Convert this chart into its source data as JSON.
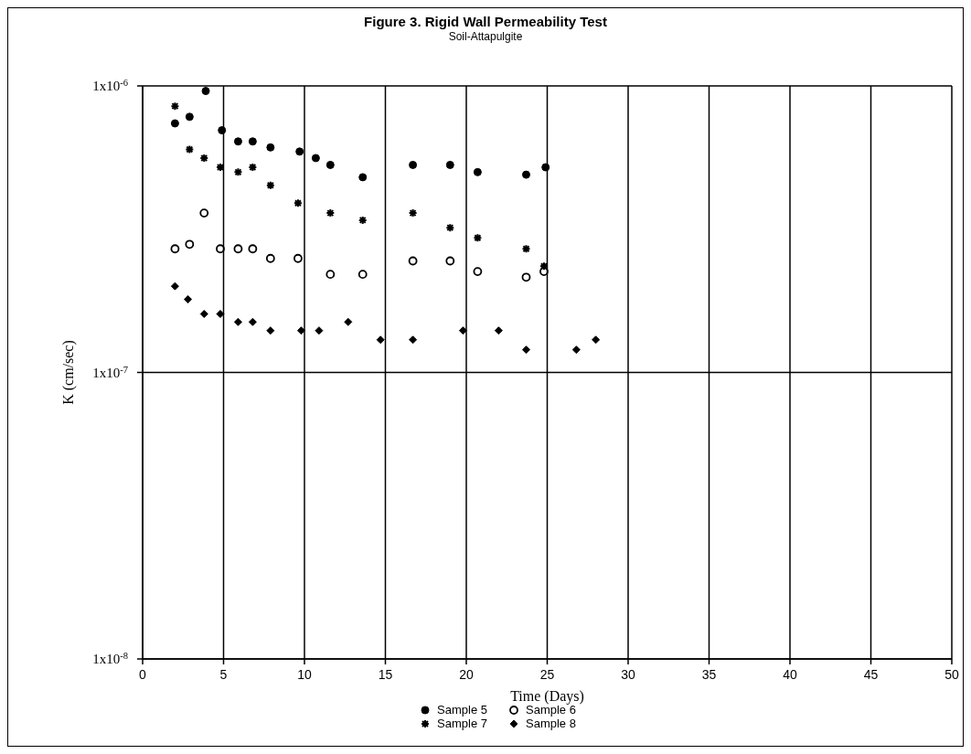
{
  "chart_data": {
    "type": "scatter",
    "title": "Figure 3. Rigid Wall Permeability Test",
    "subtitle": "Soil-Attapulgite",
    "xlabel": "Time (Days)",
    "ylabel": "K (cm/sec)",
    "xlim": [
      0,
      50
    ],
    "xticks": [
      0,
      5,
      10,
      15,
      20,
      25,
      30,
      35,
      40,
      45,
      50
    ],
    "ylim": [
      1e-08,
      1e-06
    ],
    "yticks": [
      {
        "value": 1e-08,
        "label": "1x10$^{-8}$"
      },
      {
        "value": 1e-07,
        "label": "1x10$^{-7}$"
      },
      {
        "value": 1e-06,
        "label": "1x10$^{-6}$"
      }
    ],
    "log": "y",
    "grid": true,
    "legend": "bottom",
    "series": [
      {
        "name": "Sample 5",
        "color": "#000000",
        "marker": "circle",
        "x": [
          2,
          2.9,
          3.9,
          4.9,
          5.9,
          6.8,
          7.9,
          9.7,
          10.7,
          11.6,
          13.6,
          16.7,
          19,
          20.7,
          23.7,
          24.9
        ],
        "values": [
          7.4e-07,
          7.8e-07,
          9.6e-07,
          7e-07,
          6.4e-07,
          6.4e-07,
          6.1e-07,
          5.9e-07,
          5.6e-07,
          5.3e-07,
          4.8e-07,
          5.3e-07,
          5.3e-07,
          5e-07,
          4.9e-07,
          5.2e-07
        ]
      },
      {
        "name": "Sample 6",
        "color": "#000000",
        "marker": "circle-open",
        "x": [
          2,
          2.9,
          3.8,
          4.8,
          5.9,
          6.8,
          7.9,
          9.6,
          11.6,
          13.6,
          16.7,
          19,
          20.7,
          23.7,
          24.8
        ],
        "values": [
          2.7e-07,
          2.8e-07,
          3.6e-07,
          2.7e-07,
          2.7e-07,
          2.7e-07,
          2.5e-07,
          2.5e-07,
          2.2e-07,
          2.2e-07,
          2.45e-07,
          2.45e-07,
          2.25e-07,
          2.15e-07,
          2.25e-07
        ]
      },
      {
        "name": "Sample 7",
        "color": "#000000",
        "marker": "cross",
        "x": [
          2,
          2.9,
          3.8,
          4.8,
          5.9,
          6.8,
          7.9,
          9.6,
          11.6,
          13.6,
          16.7,
          19,
          20.7,
          23.7,
          24.8
        ],
        "values": [
          8.5e-07,
          6e-07,
          5.6e-07,
          5.2e-07,
          5e-07,
          5.2e-07,
          4.5e-07,
          3.9e-07,
          3.6e-07,
          3.4e-07,
          3.6e-07,
          3.2e-07,
          2.95e-07,
          2.7e-07,
          2.35e-07
        ]
      },
      {
        "name": "Sample 8",
        "color": "#000000",
        "marker": "diamond",
        "x": [
          2,
          2.8,
          3.8,
          4.8,
          5.9,
          6.8,
          7.9,
          9.8,
          10.9,
          12.7,
          14.7,
          16.7,
          19.8,
          22,
          23.7,
          26.8,
          28
        ],
        "values": [
          2e-07,
          1.8e-07,
          1.6e-07,
          1.6e-07,
          1.5e-07,
          1.5e-07,
          1.4e-07,
          1.4e-07,
          1.4e-07,
          1.5e-07,
          1.3e-07,
          1.3e-07,
          1.4e-07,
          1.4e-07,
          1.2e-07,
          1.2e-07,
          1.3e-07
        ]
      }
    ]
  }
}
